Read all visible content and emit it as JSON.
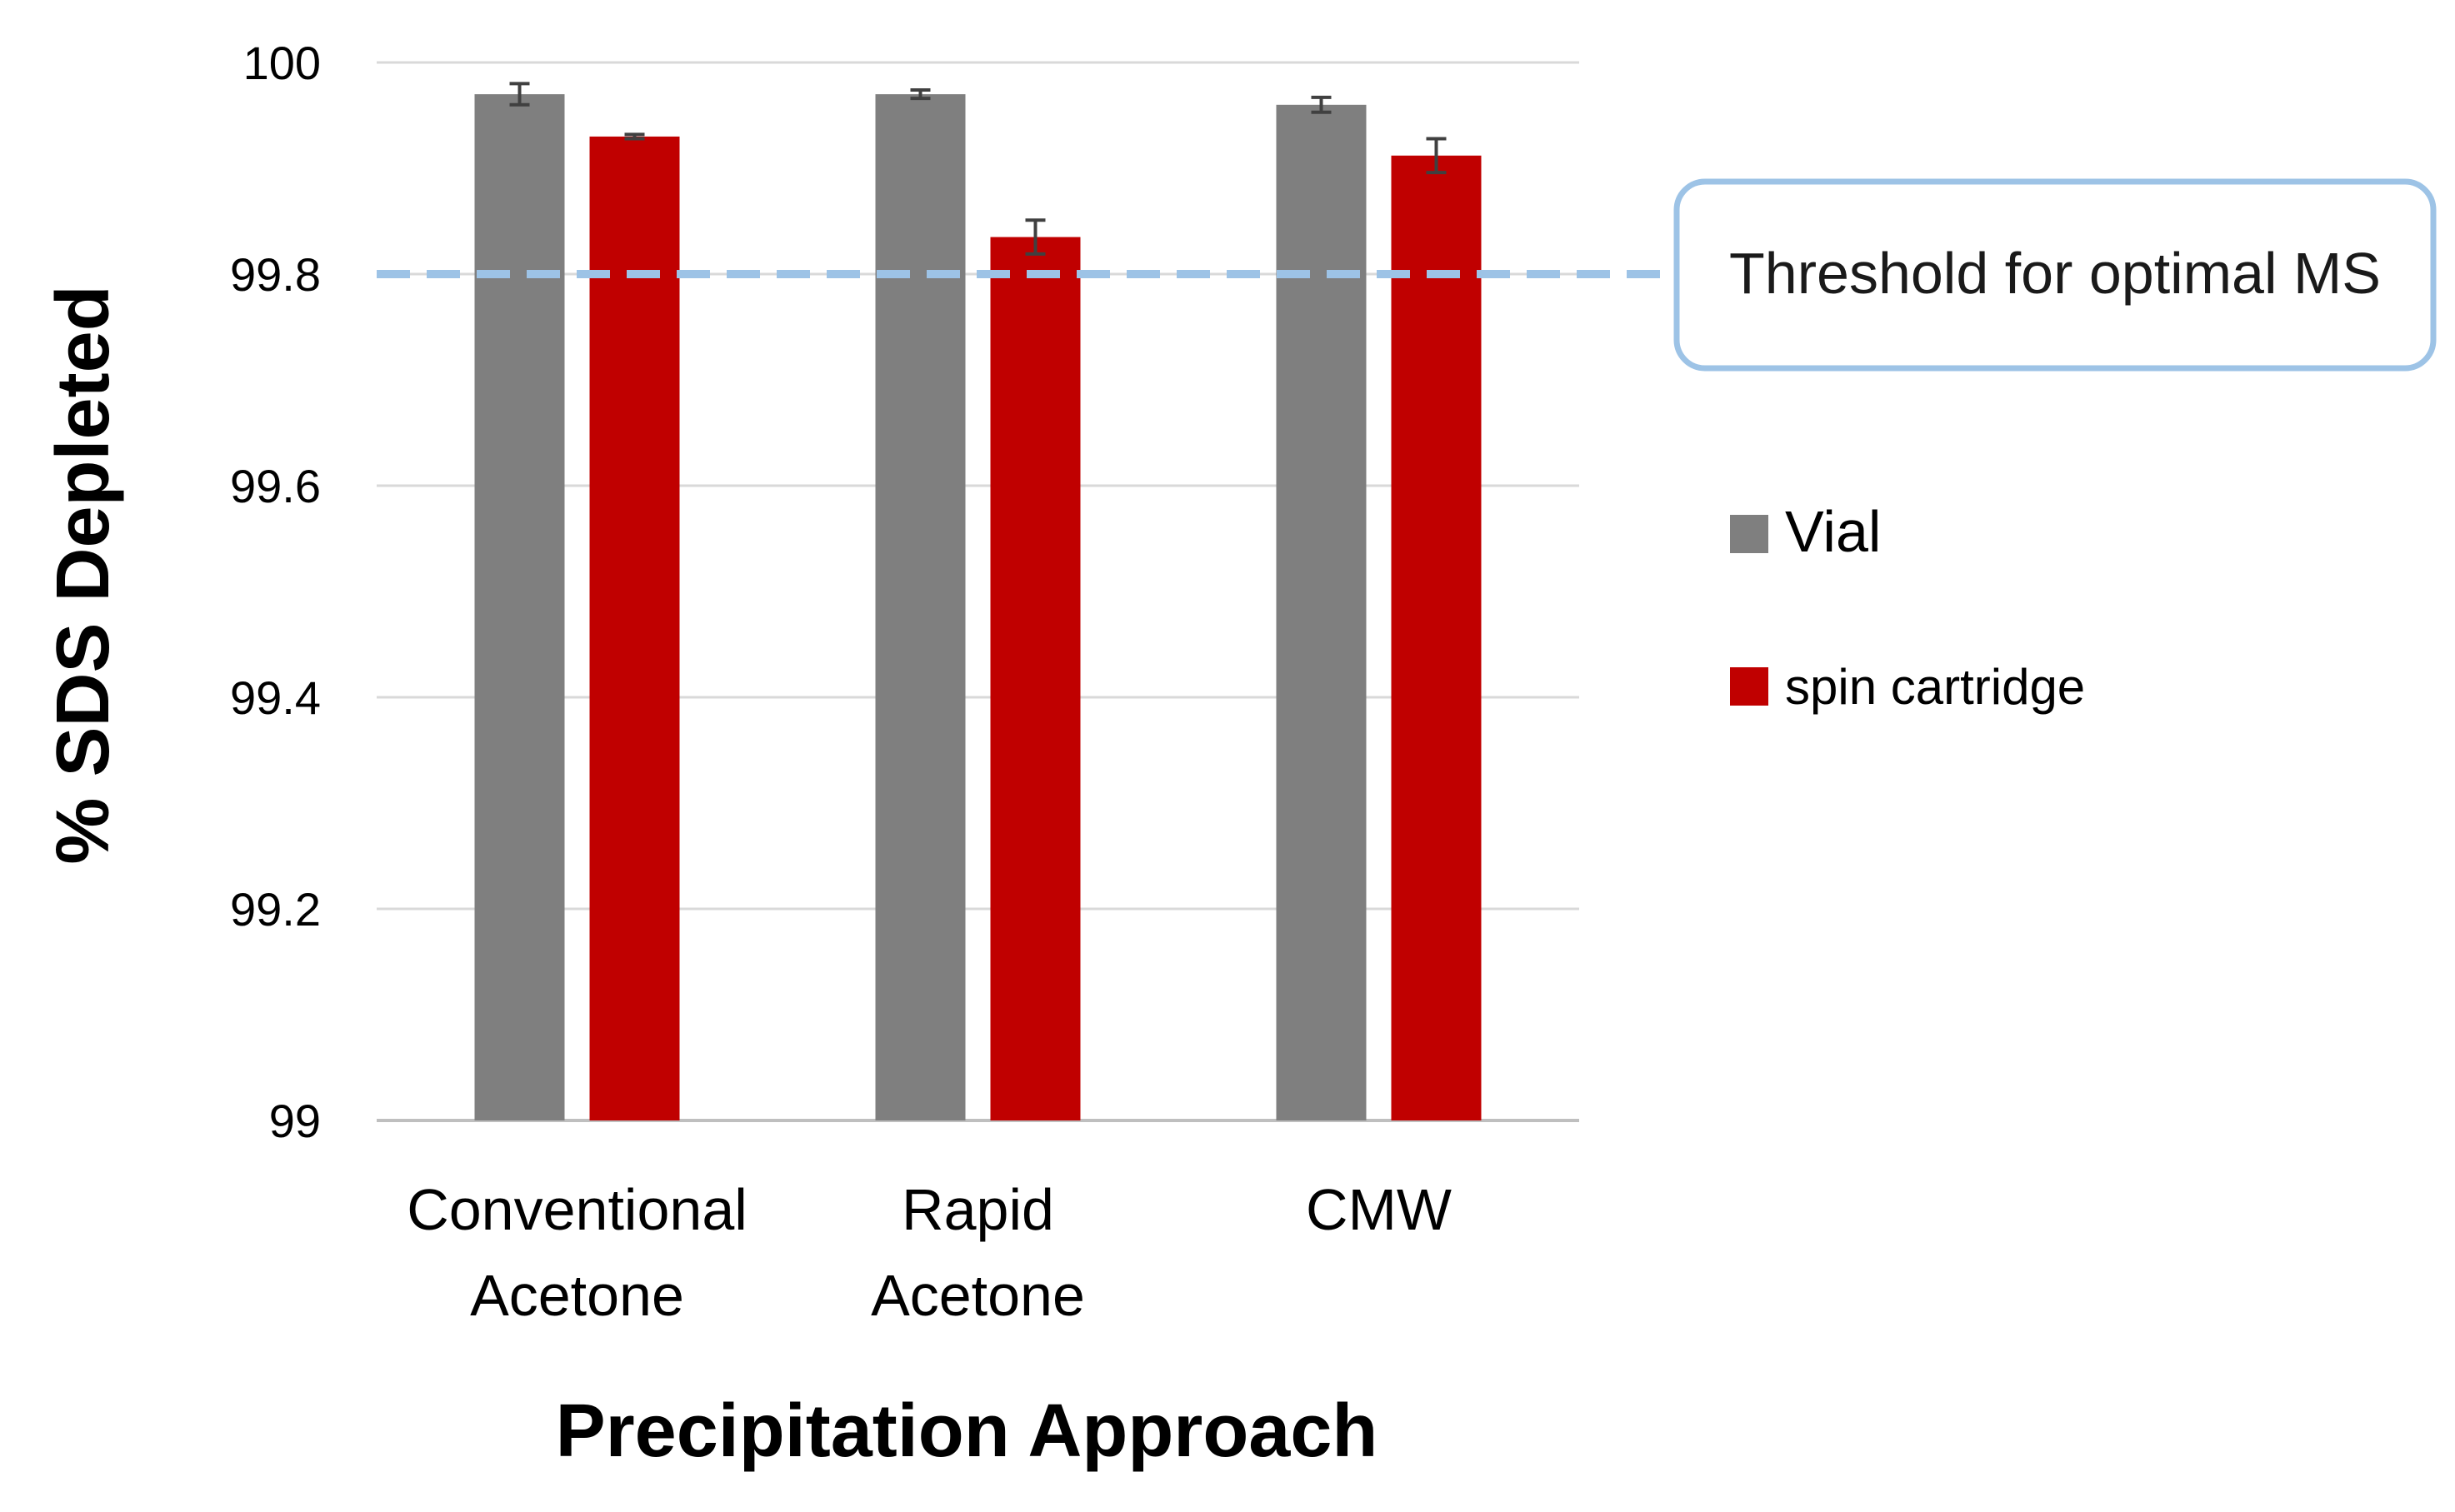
{
  "chart_data": {
    "type": "bar",
    "title": "",
    "xlabel": "Precipitation Approach",
    "ylabel": "% SDS Depleted",
    "ylim": [
      99,
      100
    ],
    "yticks": [
      99,
      99.2,
      99.4,
      99.6,
      99.8,
      100
    ],
    "ytick_labels": [
      "99",
      "99.2",
      "99.4",
      "99.6",
      "99.8",
      "100"
    ],
    "grid": true,
    "legend_position": "right",
    "categories": [
      [
        "Conventional",
        "Acetone"
      ],
      [
        "Rapid",
        "Acetone"
      ],
      [
        "CMW"
      ]
    ],
    "series": [
      {
        "name": "Vial",
        "color": "#7f7f7f",
        "values": [
          99.97,
          99.97,
          99.96
        ],
        "errors": [
          0.01,
          0.004,
          0.007
        ]
      },
      {
        "name": "spin cartridge",
        "color": "#c00000",
        "values": [
          99.93,
          99.835,
          99.912
        ],
        "errors": [
          0.002,
          0.016,
          0.016
        ]
      }
    ],
    "reference_line": {
      "value": 99.8,
      "label": "Threshold for optimal MS",
      "color": "#9dc3e6"
    }
  }
}
